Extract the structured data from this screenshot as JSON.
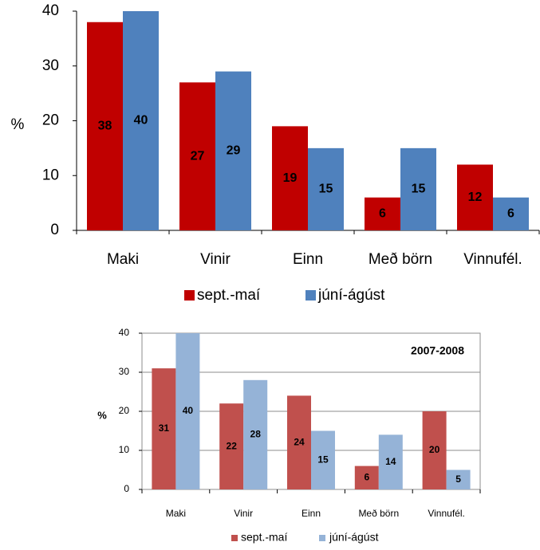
{
  "chart_data": [
    {
      "type": "bar",
      "categories": [
        "Maki",
        "Vinir",
        "Einn",
        "Með börn",
        "Vinnufél."
      ],
      "series": [
        {
          "name": "sept.-maí",
          "values": [
            38,
            27,
            19,
            6,
            12
          ],
          "color": "#C00000"
        },
        {
          "name": "júní-ágúst",
          "values": [
            40,
            29,
            15,
            15,
            6
          ],
          "color": "#4F81BD"
        }
      ],
      "ylabel": "%",
      "ylim": [
        0,
        40
      ],
      "yticks": [
        "0",
        "10",
        "20",
        "30",
        "40"
      ],
      "grid": false,
      "legend": "bottom"
    },
    {
      "type": "bar",
      "title": "2007-2008",
      "categories": [
        "Maki",
        "Vinir",
        "Einn",
        "Með börn",
        "Vinnufél."
      ],
      "series": [
        {
          "name": "sept.-maí",
          "values": [
            31,
            22,
            24,
            6,
            20
          ],
          "color": "#C0504D"
        },
        {
          "name": "júní-ágúst",
          "values": [
            40,
            28,
            15,
            14,
            5
          ],
          "color": "#95B3D7"
        }
      ],
      "ylabel": "%",
      "ylim": [
        0,
        40
      ],
      "yticks": [
        "0",
        "10",
        "20",
        "30",
        "40"
      ],
      "grid": true,
      "legend": "bottom"
    }
  ]
}
